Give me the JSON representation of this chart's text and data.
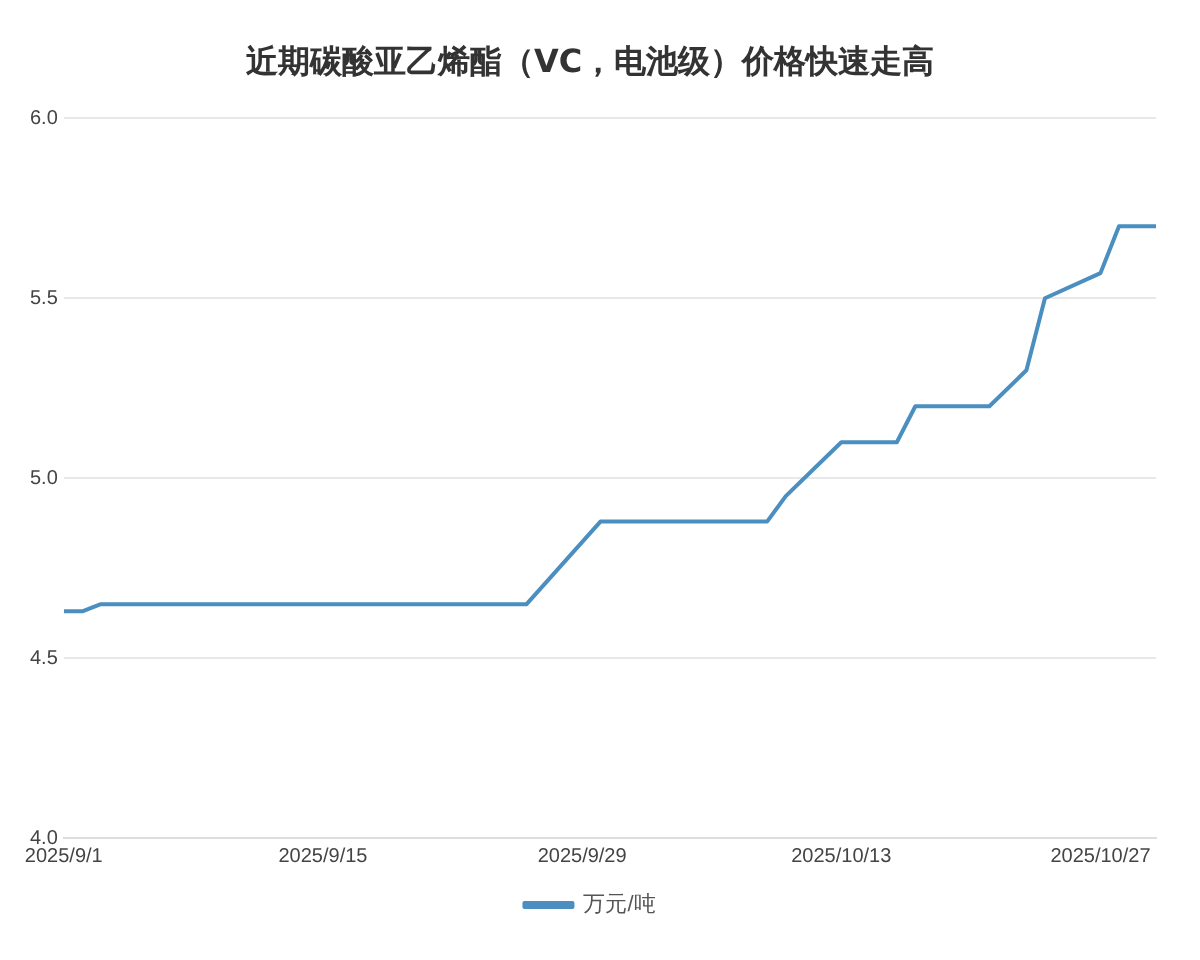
{
  "chart_data": {
    "type": "line",
    "title": "近期碳酸亚乙烯酯（VC，电池级）价格快速走高",
    "x": [
      "2025-09-01",
      "2025-09-02",
      "2025-09-03",
      "2025-09-26",
      "2025-09-30",
      "2025-10-09",
      "2025-10-10",
      "2025-10-13",
      "2025-10-16",
      "2025-10-17",
      "2025-10-21",
      "2025-10-23",
      "2025-10-24",
      "2025-10-27",
      "2025-10-28",
      "2025-10-30"
    ],
    "series": [
      {
        "name": "万元/吨",
        "color": "#4a8fc0",
        "values": [
          4.63,
          4.63,
          4.65,
          4.65,
          4.88,
          4.88,
          4.95,
          5.1,
          5.1,
          5.2,
          5.2,
          5.3,
          5.5,
          5.57,
          5.7,
          5.7
        ]
      }
    ],
    "xlim": [
      "2025-09-01",
      "2025-10-30"
    ],
    "xticks": [
      {
        "value": "2025-09-01",
        "label": "2025/9/1"
      },
      {
        "value": "2025-09-15",
        "label": "2025/9/15"
      },
      {
        "value": "2025-09-29",
        "label": "2025/9/29"
      },
      {
        "value": "2025-10-13",
        "label": "2025/10/13"
      },
      {
        "value": "2025-10-27",
        "label": "2025/10/27"
      }
    ],
    "ylim": [
      4,
      6
    ],
    "yticks": [
      {
        "value": 4,
        "label": "4.0"
      },
      {
        "value": 4.5,
        "label": "4.5"
      },
      {
        "value": 5,
        "label": "5.0"
      },
      {
        "value": 5.5,
        "label": "5.5"
      },
      {
        "value": 6,
        "label": "6.0"
      }
    ],
    "grid": "y",
    "legend": "bottom",
    "marker": "none",
    "line_style": "solid"
  }
}
